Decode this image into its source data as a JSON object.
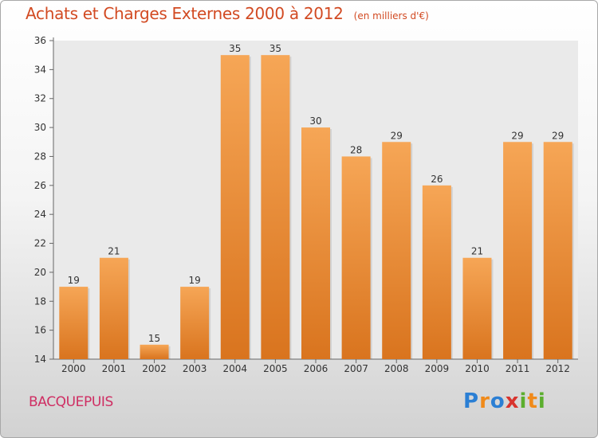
{
  "header": {
    "title": "Achats et Charges Externes 2000 à 2012",
    "unit_note": "(en milliers d'€)"
  },
  "footer": {
    "commune": "BACQUEPUIS",
    "logo_text": "Proxiti"
  },
  "colors": {
    "title": "#d24a22",
    "commune": "#cf2e63",
    "bar_light": "#f6a656",
    "bar_dark": "#d9741e"
  },
  "chart_data": {
    "type": "bar",
    "title": "Achats et Charges Externes 2000 à 2012",
    "subtitle": "(en milliers d'€)",
    "xlabel": "",
    "ylabel": "",
    "categories": [
      "2000",
      "2001",
      "2002",
      "2003",
      "2004",
      "2005",
      "2006",
      "2007",
      "2008",
      "2009",
      "2010",
      "2011",
      "2012"
    ],
    "values": [
      19,
      21,
      15,
      19,
      35,
      35,
      30,
      28,
      29,
      26,
      21,
      29,
      29
    ],
    "ylim": [
      14,
      36
    ],
    "yticks": [
      14,
      16,
      18,
      20,
      22,
      24,
      26,
      28,
      30,
      32,
      34,
      36
    ],
    "grid": false,
    "legend": "none"
  }
}
